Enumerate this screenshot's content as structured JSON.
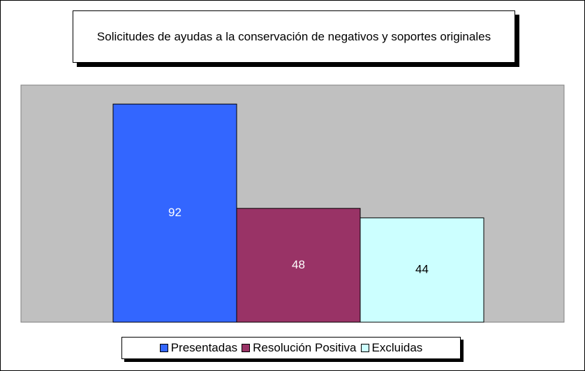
{
  "chart_data": {
    "type": "bar",
    "title": "Solicitudes de ayudas a la conservación de negativos y soportes originales",
    "categories": [
      null
    ],
    "series": [
      {
        "name": "Presentadas",
        "color": "#3366ff",
        "values": [
          92
        ]
      },
      {
        "name": "Resolución Positiva",
        "color": "#993366",
        "values": [
          48
        ]
      },
      {
        "name": "Excluidas",
        "color": "#ccffff",
        "values": [
          44
        ]
      }
    ],
    "ylim": [
      0,
      100
    ],
    "legend": "bottom"
  }
}
